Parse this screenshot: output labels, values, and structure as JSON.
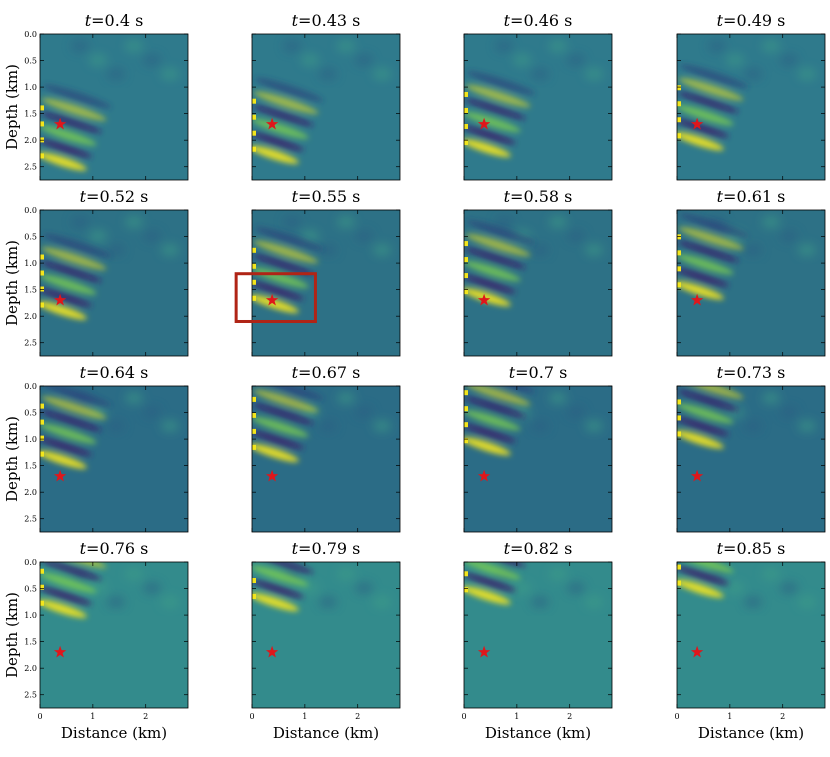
{
  "chart_data": {
    "type": "heatmap",
    "colormap": "viridis",
    "grid": false,
    "xlabel": "Distance (km)",
    "ylabel": "Depth (km)",
    "xlim": [
      0,
      2.8
    ],
    "ylim": [
      2.75,
      0
    ],
    "x_ticks": [
      "0",
      "1",
      "2"
    ],
    "y_ticks": [
      "0.0",
      "0.5",
      "1.0",
      "1.5",
      "2.0",
      "2.5"
    ],
    "title_var": "t",
    "title_unit": "s",
    "times": [
      "0.4",
      "0.43",
      "0.46",
      "0.49",
      "0.52",
      "0.55",
      "0.58",
      "0.61",
      "0.64",
      "0.67",
      "0.7",
      "0.73",
      "0.76",
      "0.79",
      "0.82",
      "0.85"
    ],
    "source": {
      "marker": "star",
      "x": 0.38,
      "y": 1.7,
      "color": "#e0161b"
    },
    "highlight": {
      "panel_index": 5,
      "x_range": [
        -0.3,
        1.2
      ],
      "y_range": [
        1.2,
        2.1
      ],
      "color": "#b02416"
    }
  }
}
